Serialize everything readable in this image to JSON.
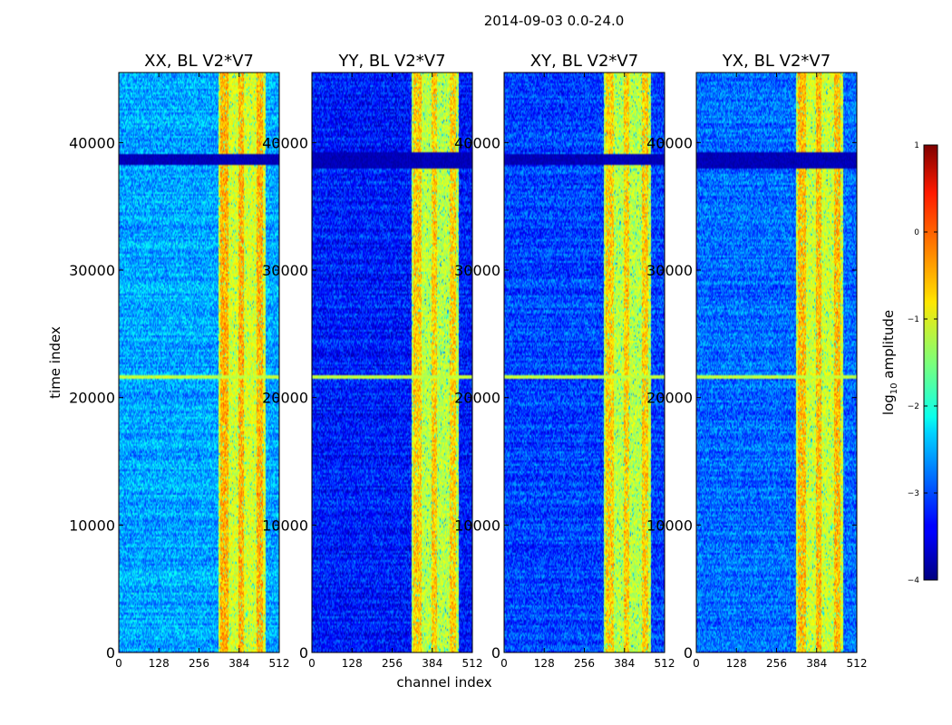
{
  "chart_data": {
    "type": "heatmap",
    "suptitle": "2014-09-03 0.0-24.0",
    "xlabel": "channel index",
    "ylabel": "time index",
    "xlim": [
      0,
      512
    ],
    "ylim": [
      0,
      45500
    ],
    "xticks": [
      0,
      128,
      256,
      384,
      512
    ],
    "yticks": [
      0,
      10000,
      20000,
      30000,
      40000
    ],
    "colormap": "jet",
    "colorbar": {
      "label": "log10 amplitude",
      "label_main": "log",
      "label_sub": "10",
      "label_rest": " amplitude",
      "range": [
        -4,
        1
      ],
      "ticks": [
        1,
        0,
        -1,
        -2,
        -3,
        -4
      ],
      "tick_labels": [
        "1",
        "0",
        "−1",
        "−2",
        "−3",
        "−4"
      ]
    },
    "panels": [
      {
        "title": "XX, BL V2*V7",
        "base": -2.55,
        "bright_band": [
          318,
          470
        ],
        "band_level": -1.05,
        "bright_strips": [
          [
            325,
            350
          ],
          [
            382,
            400
          ],
          [
            440,
            460
          ]
        ],
        "dark_rows": [
          [
            38200,
            39100
          ]
        ],
        "bright_rows": [
          [
            21400,
            21700
          ]
        ]
      },
      {
        "title": "YY, BL V2*V7",
        "base": -3.25,
        "bright_band": [
          318,
          470
        ],
        "band_level": -1.2,
        "bright_strips": [
          [
            325,
            350
          ],
          [
            382,
            400
          ],
          [
            440,
            460
          ]
        ],
        "dark_rows": [
          [
            38000,
            39200
          ]
        ],
        "bright_rows": [
          [
            21400,
            21700
          ]
        ]
      },
      {
        "title": "XY, BL V2*V7",
        "base": -3.05,
        "bright_band": [
          318,
          470
        ],
        "band_level": -1.2,
        "bright_strips": [
          [
            325,
            350
          ],
          [
            382,
            400
          ],
          [
            440,
            460
          ]
        ],
        "dark_rows": [
          [
            38200,
            39100
          ]
        ],
        "bright_rows": [
          [
            21400,
            21700
          ]
        ]
      },
      {
        "title": "YX, BL V2*V7",
        "base": -2.85,
        "bright_band": [
          318,
          470
        ],
        "band_level": -1.1,
        "bright_strips": [
          [
            325,
            350
          ],
          [
            382,
            400
          ],
          [
            440,
            460
          ]
        ],
        "dark_rows": [
          [
            38000,
            39200
          ]
        ],
        "bright_rows": [
          [
            21400,
            21700
          ]
        ]
      }
    ]
  }
}
